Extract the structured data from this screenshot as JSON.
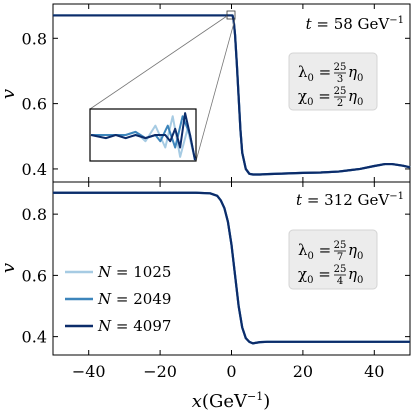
{
  "chart_data": {
    "type": "line",
    "xlabel": "x (GeV⁻¹)",
    "xlabel_var": "x",
    "xlabel_unit": "(GeV",
    "xlabel_exp": "−1",
    "xlabel_close": ")",
    "ylabel": "v",
    "xlim": [
      -50,
      50
    ],
    "xticks": [
      -40,
      -20,
      0,
      20,
      40
    ],
    "xtick_labels": [
      "−40",
      "−20",
      "0",
      "20",
      "40"
    ],
    "colors": {
      "N1025": "#a6cbe3",
      "N2049": "#3d85bb",
      "N4097": "#0c2c6a"
    },
    "legend": [
      {
        "label": "N = 1025",
        "lhs": "N",
        "rhs": " = 1025",
        "color": "#a6cbe3"
      },
      {
        "label": "N = 2049",
        "lhs": "N",
        "rhs": " = 2049",
        "color": "#3d85bb"
      },
      {
        "label": "N = 4097",
        "lhs": "N",
        "rhs": " = 4097",
        "color": "#0c2c6a"
      }
    ],
    "panels": [
      {
        "time_label": "t = 58 GeV⁻¹",
        "time_var": "t",
        "time_rest": " = 58 GeV",
        "time_exp": "−1",
        "params": [
          "λ0 = 25/3 η0",
          "χ0 = 25/2 η0"
        ],
        "param_lines": [
          {
            "sym": "λ",
            "num": "25",
            "den": "3",
            "eta": "η"
          },
          {
            "sym": "χ",
            "num": "25",
            "den": "2",
            "eta": "η"
          }
        ],
        "ylim": [
          0.36,
          0.905
        ],
        "yticks": [
          0.4,
          0.6,
          0.8
        ],
        "ytick_labels": [
          "0.4",
          "0.6",
          "0.8"
        ],
        "inset": {
          "xlim": [
            -1.5,
            0.6
          ],
          "ylim": [
            0.862,
            0.878
          ]
        },
        "series": [
          {
            "name": "N = 1025",
            "color": "#a6cbe3",
            "x": [
              -50,
              -2,
              0.3,
              0.6,
              1,
              1.5,
              2,
              2.5,
              3,
              4,
              5,
              6,
              8,
              10,
              15,
              20,
              25,
              30,
              33,
              36,
              40,
              43,
              45,
              48,
              50
            ],
            "y": [
              0.87,
              0.87,
              0.87,
              0.855,
              0.81,
              0.72,
              0.62,
              0.52,
              0.45,
              0.4,
              0.385,
              0.383,
              0.383,
              0.384,
              0.386,
              0.388,
              0.389,
              0.392,
              0.396,
              0.4,
              0.409,
              0.415,
              0.415,
              0.41,
              0.405
            ]
          },
          {
            "name": "N = 2049",
            "color": "#3d85bb",
            "x": [
              -50,
              -2,
              0.3,
              0.6,
              1,
              1.5,
              2,
              2.5,
              3,
              4,
              5,
              6,
              8,
              10,
              15,
              20,
              25,
              30,
              33,
              36,
              40,
              43,
              45,
              48,
              50
            ],
            "y": [
              0.87,
              0.87,
              0.87,
              0.855,
              0.81,
              0.72,
              0.62,
              0.52,
              0.45,
              0.4,
              0.385,
              0.383,
              0.383,
              0.384,
              0.386,
              0.388,
              0.389,
              0.392,
              0.396,
              0.4,
              0.409,
              0.415,
              0.415,
              0.41,
              0.405
            ]
          },
          {
            "name": "N = 4097",
            "color": "#0c2c6a",
            "x": [
              -50,
              -2,
              0.3,
              0.6,
              1,
              1.5,
              2,
              2.5,
              3,
              4,
              5,
              6,
              8,
              10,
              15,
              20,
              25,
              30,
              33,
              36,
              40,
              43,
              45,
              48,
              50
            ],
            "y": [
              0.87,
              0.87,
              0.87,
              0.855,
              0.81,
              0.72,
              0.62,
              0.52,
              0.45,
              0.4,
              0.385,
              0.383,
              0.383,
              0.384,
              0.386,
              0.388,
              0.389,
              0.392,
              0.396,
              0.4,
              0.409,
              0.415,
              0.415,
              0.41,
              0.405
            ]
          }
        ],
        "inset_series": [
          {
            "name": "N = 1025",
            "color": "#a6cbe3",
            "x": [
              -1.5,
              -1.2,
              -1.0,
              -0.8,
              -0.6,
              -0.4,
              -0.2,
              0.0,
              0.15,
              0.3,
              0.45,
              0.6
            ],
            "y": [
              0.87,
              0.87,
              0.87,
              0.87,
              0.871,
              0.868,
              0.873,
              0.866,
              0.876,
              0.863,
              0.872,
              0.862
            ]
          },
          {
            "name": "N = 2049",
            "color": "#3d85bb",
            "x": [
              -1.5,
              -1.2,
              -1.0,
              -0.8,
              -0.6,
              -0.4,
              -0.2,
              -0.1,
              0.05,
              0.2,
              0.35,
              0.5,
              0.6
            ],
            "y": [
              0.87,
              0.87,
              0.87,
              0.87,
              0.871,
              0.869,
              0.87,
              0.868,
              0.873,
              0.866,
              0.876,
              0.87,
              0.862
            ]
          },
          {
            "name": "N = 4097",
            "color": "#0c2c6a",
            "x": [
              -1.5,
              -1.2,
              -1.0,
              -0.8,
              -0.6,
              -0.4,
              -0.2,
              0.0,
              0.1,
              0.2,
              0.3,
              0.4,
              0.5,
              0.6
            ],
            "y": [
              0.87,
              0.869,
              0.87,
              0.869,
              0.87,
              0.869,
              0.87,
              0.87,
              0.868,
              0.872,
              0.866,
              0.877,
              0.87,
              0.862
            ]
          }
        ]
      },
      {
        "time_label": "t = 312 GeV⁻¹",
        "time_var": "t",
        "time_rest": " = 312 GeV",
        "time_exp": "−1",
        "params": [
          "λ0 = 25/7 η0",
          "χ0 = 25/4 η0"
        ],
        "param_lines": [
          {
            "sym": "λ",
            "num": "25",
            "den": "7",
            "eta": "η"
          },
          {
            "sym": "χ",
            "num": "25",
            "den": "4",
            "eta": "η"
          }
        ],
        "ylim": [
          0.34,
          0.905
        ],
        "yticks": [
          0.4,
          0.6,
          0.8
        ],
        "ytick_labels": [
          "0.4",
          "0.6",
          "0.8"
        ],
        "series": [
          {
            "name": "N = 1025",
            "color": "#a6cbe3",
            "x": [
              -50,
              -10,
              -6,
              -4,
              -3,
              -2,
              -1,
              0,
              1,
              2,
              3,
              4,
              5,
              6,
              8,
              10,
              20,
              30,
              40,
              50
            ],
            "y": [
              0.87,
              0.87,
              0.868,
              0.86,
              0.845,
              0.82,
              0.775,
              0.7,
              0.6,
              0.5,
              0.43,
              0.395,
              0.383,
              0.378,
              0.382,
              0.383,
              0.383,
              0.383,
              0.383,
              0.383
            ]
          },
          {
            "name": "N = 2049",
            "color": "#3d85bb",
            "x": [
              -50,
              -10,
              -6,
              -4,
              -3,
              -2,
              -1,
              0,
              1,
              2,
              3,
              4,
              5,
              6,
              8,
              10,
              20,
              30,
              40,
              50
            ],
            "y": [
              0.87,
              0.87,
              0.868,
              0.86,
              0.845,
              0.82,
              0.775,
              0.7,
              0.6,
              0.5,
              0.43,
              0.395,
              0.383,
              0.378,
              0.382,
              0.383,
              0.383,
              0.383,
              0.383,
              0.383
            ]
          },
          {
            "name": "N = 4097",
            "color": "#0c2c6a",
            "x": [
              -50,
              -10,
              -6,
              -4,
              -3,
              -2,
              -1,
              0,
              1,
              2,
              3,
              4,
              5,
              6,
              8,
              10,
              20,
              30,
              40,
              50
            ],
            "y": [
              0.87,
              0.87,
              0.868,
              0.86,
              0.845,
              0.82,
              0.775,
              0.7,
              0.6,
              0.5,
              0.43,
              0.395,
              0.383,
              0.378,
              0.382,
              0.383,
              0.383,
              0.383,
              0.383,
              0.383
            ]
          }
        ]
      }
    ]
  }
}
